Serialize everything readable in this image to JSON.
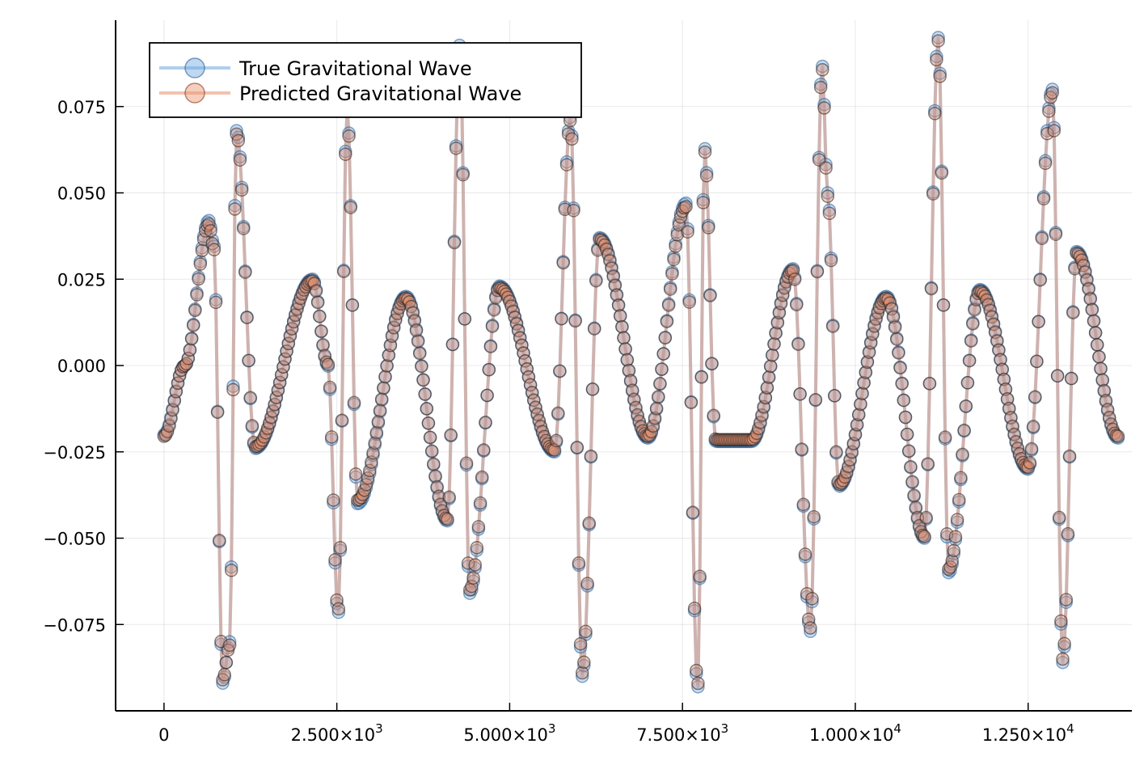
{
  "chart_data": {
    "type": "line",
    "title": "",
    "xlabel": "",
    "ylabel": "",
    "grid": true,
    "legend_position": "top-left",
    "xlim": [
      -700,
      14000
    ],
    "ylim": [
      -0.1,
      0.1
    ],
    "x_ticks": [
      {
        "value": 0,
        "label": "0"
      },
      {
        "value": 2500,
        "label": "2.500×10",
        "exp": "3"
      },
      {
        "value": 5000,
        "label": "5.000×10",
        "exp": "3"
      },
      {
        "value": 7500,
        "label": "7.500×10",
        "exp": "3"
      },
      {
        "value": 10000,
        "label": "1.000×10",
        "exp": "4"
      },
      {
        "value": 12500,
        "label": "1.250×10",
        "exp": "4"
      }
    ],
    "y_ticks": [
      {
        "value": 0.075,
        "label": "0.075"
      },
      {
        "value": 0.05,
        "label": "0.050"
      },
      {
        "value": 0.025,
        "label": "0.025"
      },
      {
        "value": 0.0,
        "label": "0.000"
      },
      {
        "value": -0.025,
        "label": "−0.025"
      },
      {
        "value": -0.05,
        "label": "−0.050"
      },
      {
        "value": -0.075,
        "label": "−0.075"
      }
    ],
    "series": [
      {
        "name": "True Gravitational Wave",
        "color": "#6fa8e0",
        "key_x": [
          0,
          300,
          650,
          720,
          850,
          950,
          1050,
          1320,
          2150,
          2370,
          2520,
          2650,
          2800,
          3500,
          4100,
          4280,
          4420,
          4850,
          5650,
          5880,
          6050,
          6300,
          7000,
          7550,
          7720,
          7820,
          7980,
          8500,
          9100,
          9350,
          9520,
          9600,
          9760,
          10450,
          11000,
          11200,
          11350,
          11800,
          12500,
          12850,
          13000,
          13200,
          13800
        ],
        "key_y": [
          -0.02,
          0.0,
          0.042,
          0.035,
          -0.092,
          -0.08,
          0.068,
          -0.024,
          0.025,
          0.0,
          -0.072,
          0.075,
          -0.04,
          0.02,
          -0.045,
          0.093,
          -0.066,
          0.023,
          -0.025,
          0.072,
          -0.09,
          0.037,
          -0.021,
          0.047,
          -0.094,
          0.063,
          -0.022,
          -0.022,
          0.028,
          -0.077,
          0.087,
          0.05,
          -0.035,
          0.02,
          -0.05,
          0.095,
          -0.06,
          0.022,
          -0.03,
          0.08,
          -0.086,
          0.033,
          -0.021
        ]
      },
      {
        "name": "Predicted Gravitational Wave",
        "color": "#e8926e",
        "key_x": [
          0,
          300,
          650,
          720,
          850,
          950,
          1050,
          1320,
          2150,
          2370,
          2520,
          2650,
          2800,
          3500,
          4100,
          4280,
          4420,
          4850,
          5650,
          5880,
          6050,
          6300,
          7000,
          7550,
          7720,
          7820,
          7980,
          8500,
          9100,
          9350,
          9520,
          9600,
          9760,
          10450,
          11000,
          11200,
          11350,
          11800,
          12500,
          12850,
          13000,
          13200,
          13800
        ],
        "key_y": [
          -0.0205,
          0.0,
          0.041,
          0.034,
          -0.091,
          -0.081,
          0.067,
          -0.0235,
          0.0245,
          0.0005,
          -0.071,
          0.074,
          -0.039,
          0.0195,
          -0.0445,
          0.092,
          -0.065,
          0.0225,
          -0.0245,
          0.071,
          -0.089,
          0.0365,
          -0.0205,
          0.046,
          -0.093,
          0.062,
          -0.0215,
          -0.0215,
          0.0275,
          -0.076,
          0.086,
          0.049,
          -0.0345,
          0.0195,
          -0.0495,
          0.094,
          -0.059,
          0.0215,
          -0.0295,
          0.079,
          -0.085,
          0.0325,
          -0.0205
        ]
      }
    ]
  }
}
